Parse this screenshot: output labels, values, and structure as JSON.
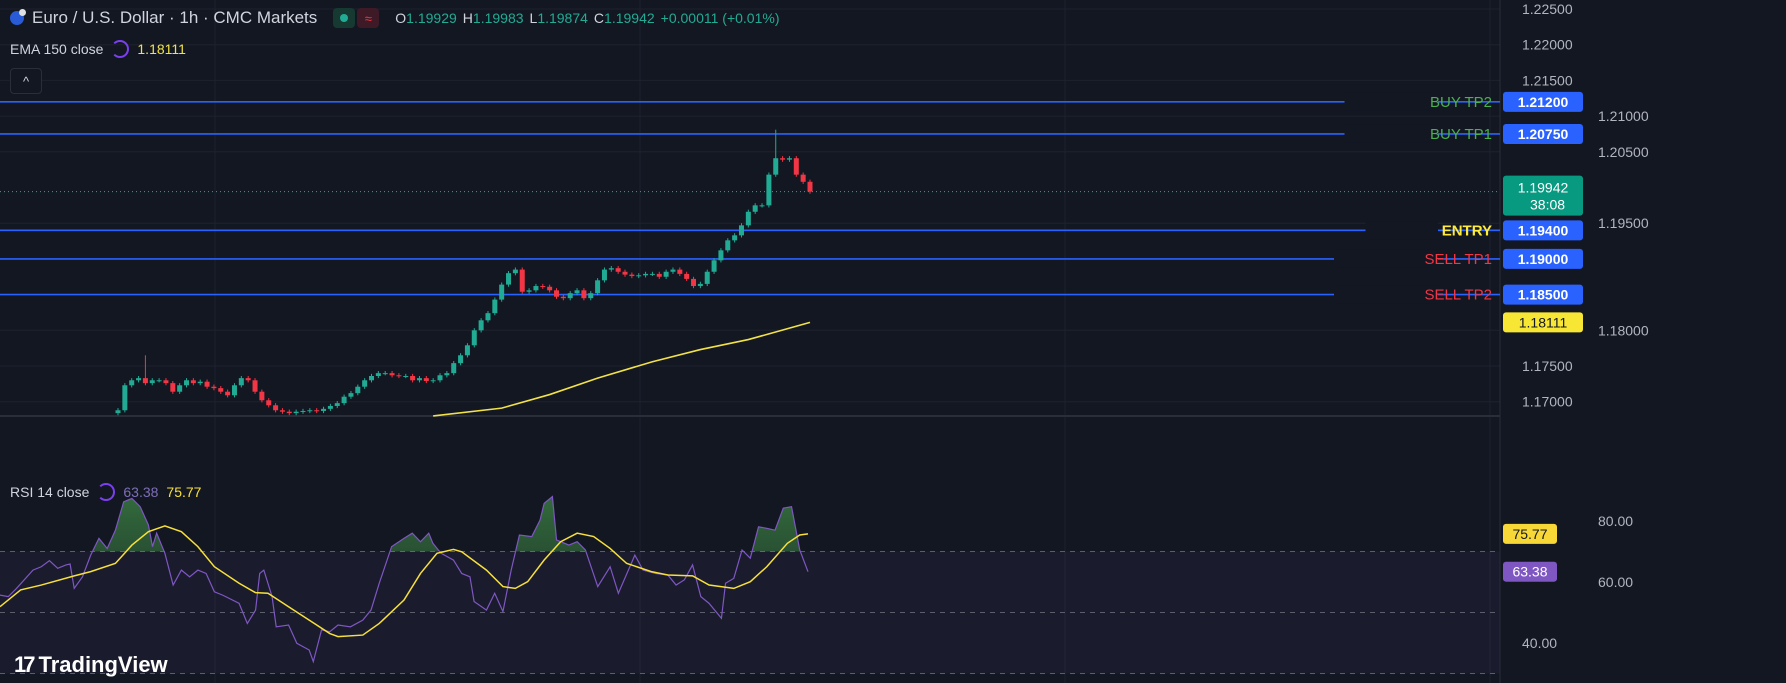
{
  "header": {
    "symbol_title": "Euro / U.S. Dollar · 1h · CMC Markets",
    "ohlc": [
      {
        "key": "O",
        "value": "1.19929"
      },
      {
        "key": "H",
        "value": "1.19983"
      },
      {
        "key": "L",
        "value": "1.19874"
      },
      {
        "key": "C",
        "value": "1.19942"
      }
    ],
    "change": "+0.00011 (+0.01%)",
    "status_icons": [
      "market-open-dot-icon",
      "data-delayed-icon"
    ]
  },
  "ema_legend": {
    "label": "EMA 150 close",
    "value": "1.18111"
  },
  "rsi_legend": {
    "label": "RSI 14 close",
    "value": "63.38",
    "ma_value": "75.77"
  },
  "collapse_button": "^",
  "logo": "TradingView",
  "colors": {
    "background": "#131722",
    "up": "#22ab94",
    "down": "#f23645",
    "level_line": "#2962ff",
    "ema": "#f2e24a",
    "rsi": "#7e57c2",
    "rsi_ma": "#f7e03c",
    "buy_label": "#4caf50",
    "entry_label": "#ffeb3b",
    "sell_label": "#f23645"
  },
  "price_axis": {
    "ticks": [
      "1.22500",
      "1.22000",
      "1.21500",
      "1.21000",
      "1.20500",
      "1.19500",
      "1.18000",
      "1.17500",
      "1.17000"
    ],
    "current_price": "1.19942",
    "countdown": "38:08",
    "ema_label": "1.18111"
  },
  "levels": [
    {
      "name": "BUY TP2",
      "price": "1.21200",
      "type": "buy"
    },
    {
      "name": "BUY TP1",
      "price": "1.20750",
      "type": "buy"
    },
    {
      "name": "ENTRY",
      "price": "1.19400",
      "type": "entry"
    },
    {
      "name": "SELL TP1",
      "price": "1.19000",
      "type": "sell"
    },
    {
      "name": "SELL TP2",
      "price": "1.18500",
      "type": "sell"
    }
  ],
  "rsi_axis": {
    "ticks": [
      "80.00",
      "60.00",
      "40.00"
    ],
    "bands": [
      70,
      50,
      30
    ],
    "rsi_label": "63.38",
    "ma_label": "75.77"
  },
  "chart_data": {
    "type": "candlestick",
    "price_range": [
      1.1665,
      1.2262
    ],
    "closes": [
      1.1688,
      1.1723,
      1.173,
      1.1733,
      1.1726,
      1.173,
      1.173,
      1.1726,
      1.1714,
      1.1723,
      1.173,
      1.1726,
      1.1728,
      1.1721,
      1.1719,
      1.1714,
      1.1709,
      1.1723,
      1.1733,
      1.173,
      1.1714,
      1.1702,
      1.1695,
      1.1688,
      1.1686,
      1.1684,
      1.1686,
      1.1687,
      1.1688,
      1.1687,
      1.169,
      1.1694,
      1.1698,
      1.1707,
      1.1712,
      1.1721,
      1.173,
      1.1736,
      1.174,
      1.174,
      1.1737,
      1.1736,
      1.1736,
      1.173,
      1.1733,
      1.1729,
      1.173,
      1.1737,
      1.174,
      1.1754,
      1.1765,
      1.1779,
      1.18,
      1.1814,
      1.1824,
      1.1843,
      1.1864,
      1.188,
      1.1885,
      1.1854,
      1.1856,
      1.1862,
      1.1861,
      1.1856,
      1.1847,
      1.1845,
      1.1852,
      1.1856,
      1.1845,
      1.1852,
      1.187,
      1.1885,
      1.1887,
      1.1882,
      1.1878,
      1.1876,
      1.1877,
      1.1879,
      1.1879,
      1.1875,
      1.1882,
      1.1885,
      1.1879,
      1.1872,
      1.1862,
      1.1865,
      1.1882,
      1.1898,
      1.1912,
      1.1926,
      1.1933,
      1.1947,
      1.1966,
      1.1975,
      1.1975,
      1.2018,
      1.2041,
      1.2039,
      1.2041,
      1.2018,
      1.2008,
      1.19942
    ],
    "spike_highs": [
      [
        4,
        1.1765
      ],
      [
        96,
        1.2081
      ]
    ],
    "ema150": [
      [
        46,
        1.168
      ],
      [
        56,
        1.1691
      ],
      [
        63,
        1.171
      ],
      [
        70,
        1.1733
      ],
      [
        78,
        1.1756
      ],
      [
        85,
        1.1773
      ],
      [
        92,
        1.1787
      ],
      [
        101,
        1.18111
      ]
    ],
    "rsi": {
      "range": [
        26,
        90
      ],
      "rsi14": [
        [
          0,
          55.7
        ],
        [
          1,
          55.2
        ],
        [
          2,
          57.9
        ],
        [
          4,
          63.9
        ],
        [
          5,
          65.0
        ],
        [
          6,
          67.0
        ],
        [
          7,
          64.5
        ],
        [
          8,
          65.6
        ],
        [
          8.5,
          65.9
        ],
        [
          9,
          57.9
        ],
        [
          10,
          61.7
        ],
        [
          11,
          68.8
        ],
        [
          12,
          74.3
        ],
        [
          13,
          71.0
        ],
        [
          14,
          77.0
        ],
        [
          15,
          86.3
        ],
        [
          16,
          87.4
        ],
        [
          17,
          84.7
        ],
        [
          18,
          78.7
        ],
        [
          18.5,
          71.6
        ],
        [
          19,
          76.0
        ],
        [
          20,
          69.4
        ],
        [
          21,
          59.0
        ],
        [
          22,
          63.9
        ],
        [
          23,
          61.7
        ],
        [
          24,
          63.9
        ],
        [
          25,
          62.8
        ],
        [
          26,
          56.8
        ],
        [
          27,
          55.7
        ],
        [
          29,
          53.0
        ],
        [
          30,
          46.4
        ],
        [
          31,
          50.8
        ],
        [
          31.5,
          62.8
        ],
        [
          32,
          63.9
        ],
        [
          33,
          55.2
        ],
        [
          33.5,
          45.3
        ],
        [
          35,
          45.9
        ],
        [
          36,
          39.9
        ],
        [
          37.5,
          37.7
        ],
        [
          38,
          33.9
        ],
        [
          39,
          44.3
        ],
        [
          40,
          43.7
        ],
        [
          41,
          45.9
        ],
        [
          42.5,
          45.3
        ],
        [
          44,
          47.5
        ],
        [
          45,
          50.8
        ],
        [
          46,
          59.6
        ],
        [
          47.5,
          71.6
        ],
        [
          49,
          74.3
        ],
        [
          50,
          76.0
        ],
        [
          51,
          73.2
        ],
        [
          52,
          76.0
        ],
        [
          52.5,
          72.7
        ],
        [
          53.5,
          69.4
        ],
        [
          55,
          67.2
        ],
        [
          56,
          62.8
        ],
        [
          57,
          61.7
        ],
        [
          57.5,
          53.6
        ],
        [
          59,
          50.8
        ],
        [
          60,
          56.3
        ],
        [
          61,
          50.3
        ],
        [
          62,
          63.9
        ],
        [
          63,
          75.4
        ],
        [
          64.5,
          74.9
        ],
        [
          65.5,
          80.3
        ],
        [
          66,
          85.8
        ],
        [
          67,
          88.0
        ],
        [
          67.5,
          73.8
        ],
        [
          69,
          72.1
        ],
        [
          70,
          73.2
        ],
        [
          71,
          70.5
        ],
        [
          72.5,
          58.5
        ],
        [
          74,
          65.0
        ],
        [
          75,
          56.3
        ],
        [
          77,
          68.8
        ],
        [
          78,
          63.9
        ],
        [
          79.5,
          62.8
        ],
        [
          81,
          62.3
        ],
        [
          82,
          59.0
        ],
        [
          83,
          60.7
        ],
        [
          84,
          65.6
        ],
        [
          85,
          55.2
        ],
        [
          86,
          53.0
        ],
        [
          87.5,
          48.1
        ],
        [
          88,
          59.6
        ],
        [
          89,
          61.2
        ],
        [
          90,
          70.5
        ],
        [
          91,
          67.8
        ],
        [
          92,
          78.1
        ],
        [
          93,
          77.6
        ],
        [
          94,
          77.0
        ],
        [
          95,
          84.2
        ],
        [
          96,
          84.7
        ],
        [
          97,
          70.5
        ],
        [
          98,
          63.38
        ]
      ],
      "rsi_ma": [
        [
          0,
          51.9
        ],
        [
          2.5,
          57.4
        ],
        [
          5,
          59.0
        ],
        [
          9,
          62.0
        ],
        [
          11,
          63.4
        ],
        [
          14,
          66.1
        ],
        [
          16,
          72.1
        ],
        [
          18,
          76.5
        ],
        [
          20,
          78.4
        ],
        [
          22,
          76.5
        ],
        [
          24,
          71.6
        ],
        [
          26,
          65.0
        ],
        [
          29,
          59.6
        ],
        [
          31,
          56.5
        ],
        [
          32.5,
          56.3
        ],
        [
          35,
          51.9
        ],
        [
          37.5,
          47.5
        ],
        [
          40,
          43.1
        ],
        [
          41,
          42.1
        ],
        [
          44,
          42.6
        ],
        [
          46,
          46.4
        ],
        [
          49,
          54.1
        ],
        [
          51,
          62.8
        ],
        [
          53,
          69.4
        ],
        [
          55,
          70.7
        ],
        [
          56,
          69.9
        ],
        [
          59,
          63.9
        ],
        [
          61,
          58.5
        ],
        [
          62.5,
          57.9
        ],
        [
          64,
          60.1
        ],
        [
          66,
          67.2
        ],
        [
          68,
          73.2
        ],
        [
          70,
          76.0
        ],
        [
          72,
          74.9
        ],
        [
          74,
          71.0
        ],
        [
          76,
          66.1
        ],
        [
          79,
          63.4
        ],
        [
          81,
          62.3
        ],
        [
          84,
          62.0
        ],
        [
          86,
          59.0
        ],
        [
          89,
          57.9
        ],
        [
          91,
          60.1
        ],
        [
          93,
          65.0
        ],
        [
          95.5,
          72.7
        ],
        [
          97,
          75.4
        ],
        [
          98,
          75.77
        ]
      ]
    }
  }
}
